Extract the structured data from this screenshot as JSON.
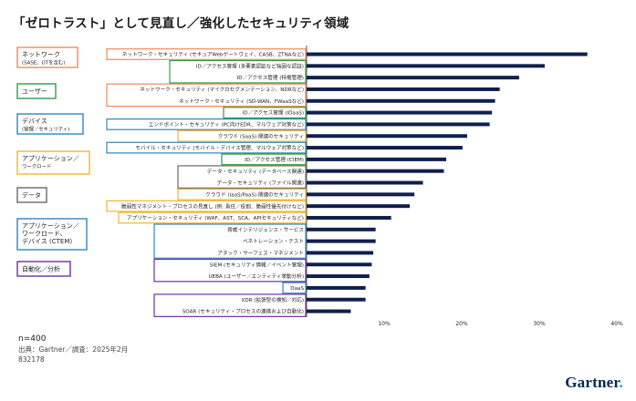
{
  "title": "「ゼロトラスト」として見直し／強化したセキュリティ領域",
  "footer": {
    "n": "n=400",
    "source": "出典：Gartner／調査：2025年2月",
    "id": "832178"
  },
  "brand": {
    "name": "Gartner",
    "dot": "."
  },
  "colors": {
    "bar": "#0f1f4d",
    "network": "#f2885b",
    "user": "#2e9e4b",
    "device": "#2f86c2",
    "app": "#f0b72f",
    "data": "#6a6a6a",
    "auto": "#6f2fa3"
  },
  "chart_data": {
    "type": "bar",
    "orientation": "horizontal",
    "x_ticks": [
      "10%",
      "20%",
      "30%",
      "40%"
    ],
    "xlim": [
      0,
      40
    ],
    "categories": [
      {
        "label": "ネットワーク・セキュリティ (セキュアWebゲートウェイ、CASB、ZTNAなど)",
        "value": 36.2,
        "group": "network"
      },
      {
        "label": "ID／アクセス管理 (多要素認証など強固な認証)",
        "value": 30.7,
        "group": "user"
      },
      {
        "label": "ID／アクセス管理 (特権管理)",
        "value": 27.4,
        "group": "user"
      },
      {
        "label": "ネットワーク・セキュリティ (マイクロセグメンテーション、NDRなど)",
        "value": 24.9,
        "group": "network"
      },
      {
        "label": "ネットワーク・セキュリティ (SD-WAN、FWaaSなど)",
        "value": 24.3,
        "group": "network"
      },
      {
        "label": "ID／アクセス管理 (IDaaS)",
        "value": 23.9,
        "group": "user"
      },
      {
        "label": "エンドポイント・セキュリティ (PC向けEDR、マルウェア対策など)",
        "value": 23.6,
        "group": "device"
      },
      {
        "label": "クラウド (SaaS) 関連のセキュリティ",
        "value": 20.7,
        "group": "app"
      },
      {
        "label": "モバイル・セキュリティ (モバイル・デバイス管理、マルウェア対策など)",
        "value": 20.1,
        "group": "device"
      },
      {
        "label": "ID／アクセス管理 (CIEM)",
        "value": 18.0,
        "group": "user"
      },
      {
        "label": "データ・セキュリティ (データベース関連)",
        "value": 17.7,
        "group": "data"
      },
      {
        "label": "データ・セキュリティ (ファイル関連)",
        "value": 15.0,
        "group": "data"
      },
      {
        "label": "クラウド (IaaS/PaaS) 関連のセキュリティ",
        "value": 13.9,
        "group": "app"
      },
      {
        "label": "脆弱性マネジメント・プロセスの見直し (例: 責任／役割、脆弱性優先付けなど)",
        "value": 13.3,
        "group": "app"
      },
      {
        "label": "アプリケーション・セキュリティ (WAF、AST、SCA、APIセキュリティなど)",
        "value": 10.9,
        "group": "app"
      },
      {
        "label": "脅威インテリジェンス・サービス",
        "value": 8.9,
        "group": "acd"
      },
      {
        "label": "ペネトレーション・テスト",
        "value": 8.9,
        "group": "acd"
      },
      {
        "label": "アタック・サーフェス・マネジメント",
        "value": 8.6,
        "group": "acd"
      },
      {
        "label": "SIEM (セキュリティ情報／イベント管理)",
        "value": 8.4,
        "group": "auto"
      },
      {
        "label": "UEBA (ユーザー／エンティティ挙動分析)",
        "value": 8.1,
        "group": "auto"
      },
      {
        "label": "DaaS",
        "value": 7.6,
        "group": "device"
      },
      {
        "label": "XDR (拡張型の検知／対応)",
        "value": 7.6,
        "group": "auto"
      },
      {
        "label": "SOAR (セキュリティ・プロセスの連携および自動化)",
        "value": 5.7,
        "group": "auto"
      }
    ],
    "groups": [
      {
        "key": "network",
        "label": "ネットワーク",
        "sublabel": "(SASE、OTを含む)"
      },
      {
        "key": "user",
        "label": "ユーザー",
        "sublabel": ""
      },
      {
        "key": "device",
        "label": "デバイス",
        "sublabel": "(管理／セキュリティ)"
      },
      {
        "key": "app",
        "label": "アプリケーション／",
        "sublabel": "ワークロード"
      },
      {
        "key": "data",
        "label": "データ",
        "sublabel": ""
      },
      {
        "key": "acd",
        "label": "アプリケーション／",
        "line2": "ワークロード、",
        "sublabel": "デバイス (CTEM)"
      },
      {
        "key": "auto",
        "label": "自動化／分析",
        "sublabel": ""
      }
    ]
  }
}
